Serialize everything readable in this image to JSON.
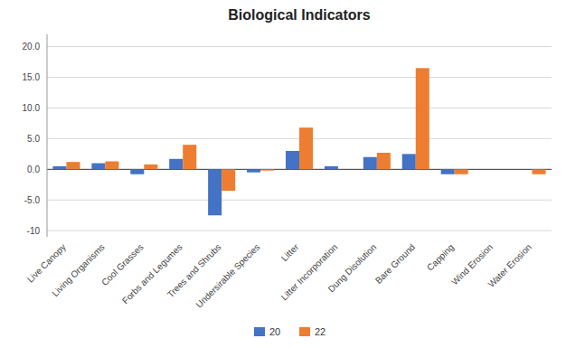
{
  "chart_data": {
    "type": "bar",
    "title": "Biological Indicators",
    "categories": [
      "Live Canopy",
      "Living Organisms",
      "Cool Grasses",
      "Forbs and Legumes",
      "Trees and Shrubs",
      "Undersirable Species",
      "Litter",
      "Litter Incorporation",
      "Dung Disolution",
      "Bare Ground",
      "Capping",
      "Wind Erosion",
      "Water Erosion"
    ],
    "series": [
      {
        "name": "20",
        "color": "#4472C4",
        "values": [
          0.5,
          1.0,
          -0.8,
          1.7,
          -7.5,
          -0.5,
          3.0,
          0.5,
          2.0,
          2.5,
          -0.8,
          0.0,
          0.0
        ]
      },
      {
        "name": "22",
        "color": "#ED7D31",
        "values": [
          1.2,
          1.3,
          0.8,
          4.0,
          -3.5,
          -0.2,
          6.8,
          0.0,
          2.7,
          16.5,
          -0.8,
          0.0,
          -0.8
        ]
      }
    ],
    "ylim": [
      -11,
      22
    ],
    "yticks": [
      -10,
      {
        "value": -5.0,
        "label": "-5.0"
      },
      {
        "value": 0.0,
        "label": "0.0"
      },
      {
        "value": 5.0,
        "label": "5.0"
      },
      {
        "value": 10.0,
        "label": "10.0"
      },
      {
        "value": 15.0,
        "label": "15.0"
      },
      {
        "value": 20.0,
        "label": "20.0"
      }
    ],
    "grid": true,
    "legend": "bottom"
  }
}
